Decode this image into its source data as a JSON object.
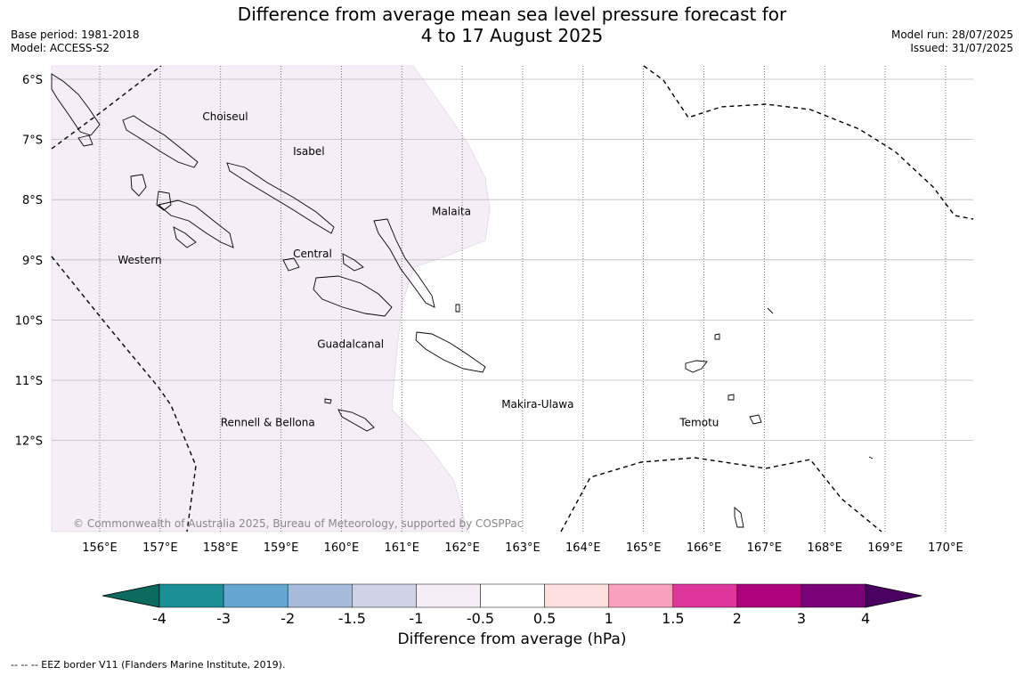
{
  "title": {
    "line1": "Difference from average mean sea level pressure forecast for",
    "line2": "4 to 17 August 2025"
  },
  "meta": {
    "base_period": "Base period: 1981-2018",
    "model": "Model: ACCESS-S2",
    "model_run": "Model run: 28/07/2025",
    "issued": "Issued: 31/07/2025"
  },
  "map": {
    "lon_range": [
      155.3,
      170.5
    ],
    "lat_range": [
      -13.5,
      -5.8
    ],
    "lat_ticks": [
      {
        "value": -6,
        "label": "6°S"
      },
      {
        "value": -7,
        "label": "7°S"
      },
      {
        "value": -8,
        "label": "8°S"
      },
      {
        "value": -9,
        "label": "9°S"
      },
      {
        "value": -10,
        "label": "10°S"
      },
      {
        "value": -11,
        "label": "11°S"
      },
      {
        "value": -12,
        "label": "12°S"
      }
    ],
    "lon_ticks": [
      {
        "value": 156,
        "label": "156°E"
      },
      {
        "value": 157,
        "label": "157°E"
      },
      {
        "value": 158,
        "label": "158°E"
      },
      {
        "value": 159,
        "label": "159°E"
      },
      {
        "value": 160,
        "label": "160°E"
      },
      {
        "value": 161,
        "label": "161°E"
      },
      {
        "value": 162,
        "label": "162°E"
      },
      {
        "value": 163,
        "label": "163°E"
      },
      {
        "value": 164,
        "label": "164°E"
      },
      {
        "value": 165,
        "label": "165°E"
      },
      {
        "value": 166,
        "label": "166°E"
      },
      {
        "value": 167,
        "label": "167°E"
      },
      {
        "value": 168,
        "label": "168°E"
      },
      {
        "value": 169,
        "label": "169°E"
      },
      {
        "value": 170,
        "label": "170°E"
      }
    ],
    "region_labels": [
      {
        "name": "Choiseul",
        "lon": 157.7,
        "lat": -6.62
      },
      {
        "name": "Isabel",
        "lon": 159.2,
        "lat": -7.2
      },
      {
        "name": "Malaita",
        "lon": 161.5,
        "lat": -8.2
      },
      {
        "name": "Western",
        "lon": 156.3,
        "lat": -9.0
      },
      {
        "name": "Central",
        "lon": 159.2,
        "lat": -8.9
      },
      {
        "name": "Guadalcanal",
        "lon": 159.6,
        "lat": -10.4
      },
      {
        "name": "Makira-Ulawa",
        "lon": 162.65,
        "lat": -11.4
      },
      {
        "name": "Rennell & Bellona",
        "lon": 158.0,
        "lat": -11.7
      },
      {
        "name": "Temotu",
        "lon": 165.6,
        "lat": -11.7
      }
    ],
    "anomaly_band_color": "#f5eef6",
    "copyright": "© Commonwealth of Australia 2025, Bureau of Meteorology, supported by COSPPac"
  },
  "colorbar": {
    "title": "Difference from average (hPa)",
    "ticks": [
      "-4",
      "-3",
      "-2",
      "-1.5",
      "-1",
      "-0.5",
      "0.5",
      "1",
      "1.5",
      "2",
      "3",
      "4"
    ],
    "colors": [
      "#1b8f96",
      "#65a7d2",
      "#a7bcdc",
      "#d0d2e6",
      "#f5eef6",
      "#ffffff",
      "#fedfdf",
      "#f9a0be",
      "#de369b",
      "#ae017e",
      "#7a0177"
    ],
    "under_color": "#0a6b5e",
    "over_color": "#4a0060"
  },
  "footnote": "--  --  -- EEZ border V11 (Flanders Marine Institute, 2019)."
}
